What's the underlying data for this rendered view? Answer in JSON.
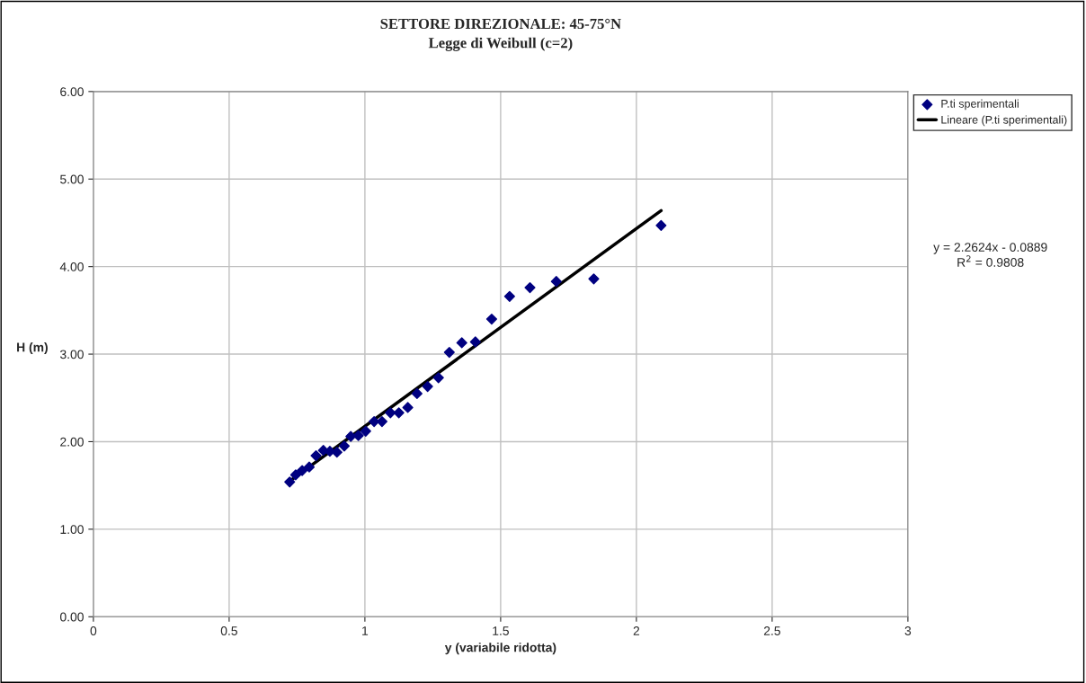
{
  "chart_data": {
    "type": "scatter",
    "title": "SETTORE DIREZIONALE: 45-75°N",
    "subtitle": "Legge di Weibull (c=2)",
    "xlabel": "y (variabile ridotta)",
    "ylabel": "H (m)",
    "series": [
      {
        "name": "P.ti sperimentali",
        "color": "#000080",
        "marker": "diamond",
        "x": [
          0.723,
          0.745,
          0.769,
          0.795,
          0.82,
          0.847,
          0.871,
          0.897,
          0.924,
          0.948,
          0.976,
          1.003,
          1.034,
          1.063,
          1.094,
          1.125,
          1.158,
          1.192,
          1.231,
          1.271,
          1.311,
          1.357,
          1.407,
          1.467,
          1.533,
          1.608,
          1.705,
          1.843,
          2.091
        ],
        "values": [
          1.54,
          1.62,
          1.67,
          1.71,
          1.84,
          1.9,
          1.89,
          1.88,
          1.95,
          2.06,
          2.07,
          2.12,
          2.23,
          2.23,
          2.33,
          2.33,
          2.39,
          2.55,
          2.63,
          2.73,
          3.02,
          3.13,
          3.14,
          3.4,
          3.66,
          3.76,
          3.83,
          3.86,
          4.47
        ]
      },
      {
        "name": "Lineare (P.ti sperimentali)",
        "type": "line",
        "color": "#000000",
        "marker": "none",
        "line_style": "solid",
        "x": [
          0.723,
          2.091
        ],
        "values": [
          1.55,
          4.64
        ]
      }
    ],
    "xlim": [
      0,
      3
    ],
    "xticks": [
      0,
      0.5,
      1,
      1.5,
      2,
      2.5,
      3
    ],
    "ylim": [
      0,
      6
    ],
    "yticks": [
      {
        "value": 0,
        "label": "0.00"
      },
      {
        "value": 1,
        "label": "1.00"
      },
      {
        "value": 2,
        "label": "2.00"
      },
      {
        "value": 3,
        "label": "3.00"
      },
      {
        "value": 4,
        "label": "4.00"
      },
      {
        "value": 5,
        "label": "5.00"
      },
      {
        "value": 6,
        "label": "6.00"
      }
    ],
    "grid": true,
    "legend": "top right",
    "annotations": [
      "y = 2.2624x - 0.0889\nR$^{2}$ = 0.9808"
    ]
  }
}
